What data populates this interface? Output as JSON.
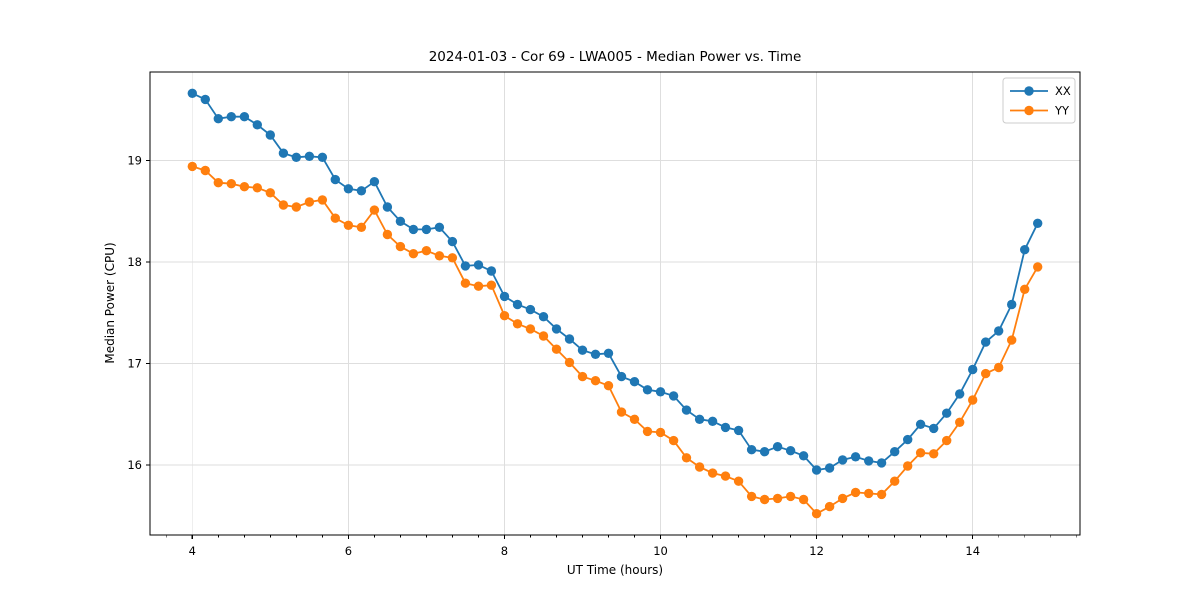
{
  "title": "2024-01-03 - Cor 69 - LWA005 - Median Power vs. Time",
  "axes": {
    "xlabel": "UT Time (hours)",
    "ylabel": "Median Power (CPU)",
    "x_tick_labels": [
      "4",
      "6",
      "8",
      "10",
      "12",
      "14"
    ],
    "x_ticks": [
      4,
      6,
      8,
      10,
      12,
      14
    ],
    "x_minor_step": 0.33333,
    "y_tick_labels": [
      "16",
      "17",
      "18",
      "19"
    ],
    "y_ticks": [
      16,
      17,
      18,
      19
    ],
    "xlim": [
      3.458,
      15.375
    ],
    "ylim": [
      15.31,
      19.87
    ],
    "grid": true,
    "grid_color": "#dedede",
    "spine_color": "#000000"
  },
  "legend": {
    "position": "upper-right",
    "items": [
      {
        "label": "XX",
        "color": "#1f77b4"
      },
      {
        "label": "YY",
        "color": "#ff7f0e"
      }
    ]
  },
  "chart_data": {
    "type": "line",
    "title": "2024-01-03 - Cor 69 - LWA005 - Median Power vs. Time",
    "xlabel": "UT Time (hours)",
    "ylabel": "Median Power (CPU)",
    "xlim": [
      3.458,
      15.375
    ],
    "ylim": [
      15.31,
      19.87
    ],
    "grid": true,
    "legend_position": "upper-right",
    "marker": "circle",
    "x": [
      4.0,
      4.167,
      4.333,
      4.5,
      4.667,
      4.833,
      5.0,
      5.167,
      5.333,
      5.5,
      5.667,
      5.833,
      6.0,
      6.167,
      6.333,
      6.5,
      6.667,
      6.833,
      7.0,
      7.167,
      7.333,
      7.5,
      7.667,
      7.833,
      8.0,
      8.167,
      8.333,
      8.5,
      8.667,
      8.833,
      9.0,
      9.167,
      9.333,
      9.5,
      9.667,
      9.833,
      10.0,
      10.167,
      10.333,
      10.5,
      10.667,
      10.833,
      11.0,
      11.167,
      11.333,
      11.5,
      11.667,
      11.833,
      12.0,
      12.167,
      12.333,
      12.5,
      12.667,
      12.833,
      13.0,
      13.167,
      13.333,
      13.5,
      13.667,
      13.833,
      14.0,
      14.167,
      14.333,
      14.5,
      14.667,
      14.833
    ],
    "series": [
      {
        "name": "XX",
        "color": "#1f77b4",
        "values": [
          19.66,
          19.6,
          19.41,
          19.43,
          19.43,
          19.35,
          19.25,
          19.07,
          19.03,
          19.04,
          19.03,
          18.81,
          18.72,
          18.7,
          18.79,
          18.54,
          18.4,
          18.32,
          18.32,
          18.34,
          18.2,
          17.96,
          17.97,
          17.91,
          17.66,
          17.58,
          17.53,
          17.46,
          17.34,
          17.24,
          17.13,
          17.09,
          17.1,
          16.87,
          16.82,
          16.74,
          16.72,
          16.68,
          16.54,
          16.45,
          16.43,
          16.37,
          16.34,
          16.15,
          16.13,
          16.18,
          16.14,
          16.09,
          15.95,
          15.97,
          16.05,
          16.08,
          16.04,
          16.02,
          16.13,
          16.25,
          16.4,
          16.36,
          16.51,
          16.7,
          16.94,
          17.21,
          17.32,
          17.58,
          18.12,
          18.38
        ]
      },
      {
        "name": "YY",
        "color": "#ff7f0e",
        "values": [
          18.94,
          18.9,
          18.78,
          18.77,
          18.74,
          18.73,
          18.68,
          18.56,
          18.54,
          18.59,
          18.61,
          18.43,
          18.36,
          18.34,
          18.51,
          18.27,
          18.15,
          18.08,
          18.11,
          18.06,
          18.04,
          17.79,
          17.76,
          17.77,
          17.47,
          17.39,
          17.34,
          17.27,
          17.14,
          17.01,
          16.87,
          16.83,
          16.78,
          16.52,
          16.45,
          16.33,
          16.32,
          16.24,
          16.07,
          15.98,
          15.92,
          15.89,
          15.84,
          15.69,
          15.66,
          15.67,
          15.69,
          15.66,
          15.52,
          15.59,
          15.67,
          15.73,
          15.72,
          15.71,
          15.84,
          15.99,
          16.12,
          16.11,
          16.24,
          16.42,
          16.64,
          16.9,
          16.96,
          17.23,
          17.73,
          17.95
        ]
      }
    ]
  }
}
